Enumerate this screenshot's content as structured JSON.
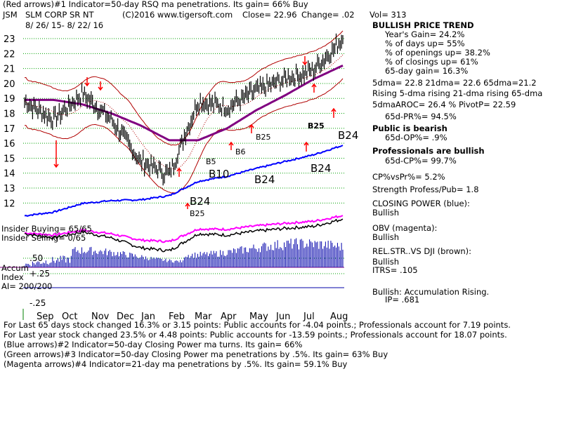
{
  "header": {
    "line1": "(Red arrows)#1 Indicator=50-day RSQ ma penetrations. Its gain= 66% Buy",
    "ticker": "JSM",
    "name": "SLM CORP SR NT",
    "source": "(C)2016 www.tigersoft.com",
    "close": "Close= 22.96",
    "change": "Change= .02",
    "vol": "Vol= 313",
    "date_range": "8/ 26/ 15- 8/ 22/ 16"
  },
  "right_panel": [
    {
      "text": "BULLISH PRICE TREND",
      "bold": true
    },
    {
      "text": "Year's Gain= 24.2%"
    },
    {
      "text": "% of days up= 55%"
    },
    {
      "text": "% of openings up= 38.2%"
    },
    {
      "text": "% of closings up= 61%"
    },
    {
      "text": "65-day gain= 16.3%"
    },
    {
      "text": "5dma= 22.8 21dma= 22.6 65dma=21.2"
    },
    {
      "text": "Rising 5-dma rising 21-dma rising 65-dma"
    },
    {
      "text": "5dmaAROC= 26.4 % PivotP= 22.59"
    },
    {
      "text": "65d-PR%= 94.5%"
    },
    {
      "text": "Public is bearish",
      "bold": true
    },
    {
      "text": "65d-OP%= .9%"
    },
    {
      "text": "Professionals are bullish",
      "bold": true
    },
    {
      "text": "65d-CP%= 99.7%"
    },
    {
      "text": "CP%vsPr%= 5.2%"
    },
    {
      "text": "Strength Profess/Pub= 1.8"
    },
    {
      "text": "CLOSING POWER (blue):"
    },
    {
      "text": "Bullish"
    },
    {
      "text": "OBV (magenta):"
    },
    {
      "text": "Bullish"
    },
    {
      "text": "REL.STR..VS DJI (brown):"
    },
    {
      "text": "Bullish"
    },
    {
      "text": "ITRS= .105"
    },
    {
      "text": "Bullish: Accumulation Rising."
    },
    {
      "text": "IP= .681"
    }
  ],
  "footer": [
    "For Last 65 days stock changed 16.3% or 3.15 points: Public accounts for -4.04 points.; Professionals account for 7.19 points.",
    "For Last year stock changed 23.5% or 4.48 points: Public accounts for -13.59 points.; Professionals account for 18.07 points.",
    "(Blue arrows)#2 Indicator=50-day Closing Power ma turns. Its gain= 66%",
    "(Green arrows)#3 Indicator=50-day Closing Power ma penetrations by .5%. Its gain= 63% Buy",
    "(Magenta arrows)#4 Indicator=21-day ma penetrations by .5%. Its gain= 59.1% Buy"
  ],
  "panel_labels": {
    "insider_buying": "Insider Buying= 65/65",
    "insider_selling": "Insider Selling= 0/65",
    "accum_index": "Accum Index",
    "ai": "AI= 200/200"
  },
  "signal_labels": {
    "b5": "B5",
    "b10": "B10",
    "b24_low": "B24",
    "b25_low": "B25",
    "b6": "B6",
    "b25_mid": "B25",
    "b24_cp": "B24",
    "b24_right": "B24",
    "b24_mid": "B24",
    "b25_jul": "B25"
  },
  "colors": {
    "price": "#000000",
    "bands": "#b00000",
    "ma65": "#800080",
    "closing_power": "#0000ff",
    "obv": "#ff00ff",
    "relstr": "#8b4513",
    "accum": "#0000aa",
    "red_arrow": "#ff0000",
    "grid": "#00a000"
  },
  "chart_data": {
    "type": "line",
    "title": "JSM SLM CORP SR NT",
    "date_range": "8/ 26/ 15- 8/ 22/ 16",
    "x_tick_labels": [
      "Sep",
      "Oct",
      "Nov",
      "Dec",
      "Jan",
      "Feb",
      "Mar",
      "Apr",
      "May",
      "Jun",
      "Jul",
      "Aug"
    ],
    "price_axis": {
      "ticks": [
        12,
        13,
        14,
        15,
        16,
        17,
        18,
        19,
        20,
        21,
        22,
        23
      ],
      "ylim": [
        11.5,
        23.8
      ]
    },
    "accum_axis": {
      "ticks": [
        ".50",
        "+.25",
        "-.25"
      ]
    },
    "series": [
      {
        "name": "Price",
        "x": [
          "Sep",
          "Oct",
          "Nov",
          "Dec",
          "Jan",
          "Feb",
          "Mar",
          "Apr",
          "May",
          "Jun",
          "Jul",
          "Aug"
        ],
        "values": [
          18.8,
          17.6,
          19.3,
          17.6,
          14.8,
          13.9,
          18.8,
          18.4,
          19.5,
          20.3,
          20.9,
          22.96
        ]
      },
      {
        "name": "65-dma",
        "x": [
          "Sep",
          "Oct",
          "Nov",
          "Dec",
          "Jan",
          "Feb",
          "Mar",
          "Apr",
          "May",
          "Jun",
          "Jul",
          "Aug"
        ],
        "values": [
          18.9,
          18.9,
          18.6,
          18.0,
          17.2,
          16.2,
          16.2,
          17.0,
          18.2,
          19.2,
          20.3,
          21.2
        ]
      }
    ],
    "grid": true
  }
}
